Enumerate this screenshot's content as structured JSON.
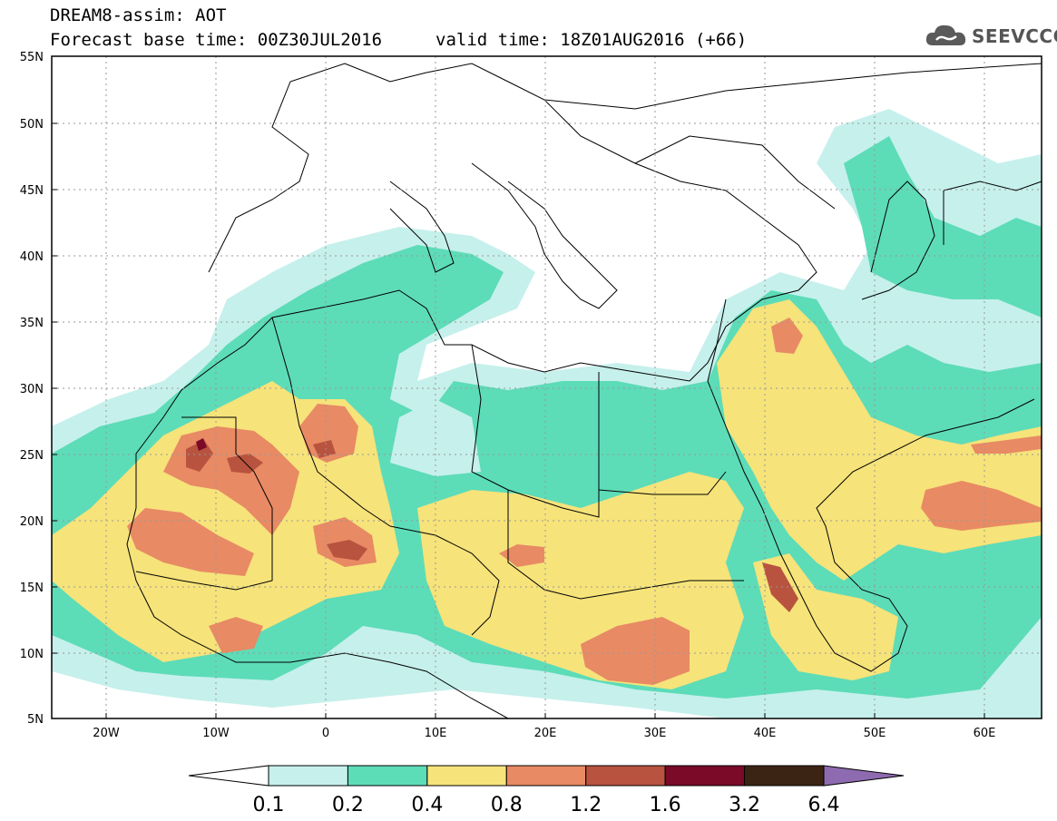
{
  "header": {
    "title_line1": "DREAM8-assim: AOT",
    "title_line2": "Forecast base time: 00Z30JUL2016",
    "valid_time": "valid time: 18Z01AUG2016 (+66)",
    "logo_text": "SEEVCCC",
    "logo_icon": "cloud-icon"
  },
  "map": {
    "lat_labels": [
      "55N",
      "50N",
      "45N",
      "40N",
      "35N",
      "30N",
      "25N",
      "20N",
      "15N",
      "10N",
      "5N"
    ],
    "lon_labels": [
      "20W",
      "10W",
      "0",
      "10E",
      "20E",
      "30E",
      "40E",
      "50E",
      "60E"
    ],
    "grid": true,
    "coastline_color": "#000000"
  },
  "colorbar": {
    "labels": [
      "0.1",
      "0.2",
      "0.4",
      "0.8",
      "1.2",
      "1.6",
      "3.2",
      "6.4"
    ],
    "colors": [
      "#ffffff",
      "#c6f0ec",
      "#5ddcb8",
      "#f6e37a",
      "#e88a64",
      "#b8533f",
      "#7a0a28",
      "#3c2414",
      "#8e6bb0"
    ]
  }
}
